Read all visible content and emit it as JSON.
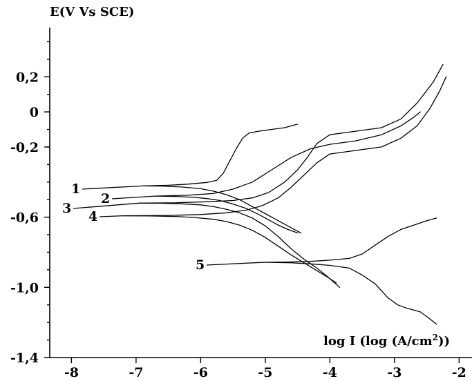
{
  "chart_data": {
    "type": "line",
    "title": "",
    "ylabel": "E(V Vs SCE)",
    "xlabel": "log I (log (A/cm²))",
    "xlabel_parts": {
      "prefix": "log I (log (A/cm",
      "sup": "2",
      "suffix": "))"
    },
    "xlim": [
      -8.4,
      -1.8
    ],
    "ylim": [
      -1.4,
      0.5
    ],
    "x_ticks": [
      -8,
      -7,
      -6,
      -5,
      -4,
      -3,
      -2
    ],
    "x_tick_labels": [
      "-8",
      "-7",
      "-6",
      "-5",
      "-4",
      "-3",
      "-2"
    ],
    "y_ticks": [
      0.2,
      0,
      -0.2,
      -0.6,
      -1.0,
      -1.4
    ],
    "y_tick_labels": [
      "0,2",
      "0",
      "-0,2",
      "-0,6",
      "-1,0",
      "-1,4"
    ],
    "grid": false,
    "legend": "none",
    "series": [
      {
        "label": "1",
        "label_anchor": {
          "x": -6.9,
          "y": -0.422
        },
        "cathodic": [
          [
            -6.9,
            -0.422
          ],
          [
            -6.6,
            -0.423
          ],
          [
            -6.3,
            -0.428
          ],
          [
            -6.0,
            -0.438
          ],
          [
            -5.8,
            -0.452
          ],
          [
            -5.6,
            -0.472
          ],
          [
            -5.4,
            -0.5
          ],
          [
            -5.2,
            -0.54
          ],
          [
            -5.0,
            -0.58
          ],
          [
            -4.85,
            -0.61
          ],
          [
            -4.7,
            -0.64
          ],
          [
            -4.55,
            -0.67
          ],
          [
            -4.45,
            -0.69
          ]
        ],
        "anodic": [
          [
            -6.9,
            -0.422
          ],
          [
            -6.5,
            -0.418
          ],
          [
            -6.2,
            -0.412
          ],
          [
            -5.9,
            -0.402
          ],
          [
            -5.75,
            -0.39
          ],
          [
            -5.65,
            -0.35
          ],
          [
            -5.55,
            -0.28
          ],
          [
            -5.45,
            -0.21
          ],
          [
            -5.35,
            -0.15
          ],
          [
            -5.25,
            -0.12
          ],
          [
            -5.1,
            -0.11
          ],
          [
            -4.9,
            -0.1
          ],
          [
            -4.7,
            -0.09
          ],
          [
            -4.5,
            -0.07
          ]
        ]
      },
      {
        "label": "2",
        "label_anchor": {
          "x": -6.7,
          "y": -0.48
        },
        "cathodic": [
          [
            -6.7,
            -0.48
          ],
          [
            -6.4,
            -0.482
          ],
          [
            -6.1,
            -0.487
          ],
          [
            -5.9,
            -0.494
          ],
          [
            -5.7,
            -0.505
          ],
          [
            -5.5,
            -0.525
          ],
          [
            -5.3,
            -0.55
          ],
          [
            -5.1,
            -0.585
          ],
          [
            -4.95,
            -0.615
          ],
          [
            -4.8,
            -0.645
          ],
          [
            -4.65,
            -0.67
          ],
          [
            -4.5,
            -0.69
          ]
        ],
        "anodic": [
          [
            -6.7,
            -0.48
          ],
          [
            -6.2,
            -0.475
          ],
          [
            -5.8,
            -0.465
          ],
          [
            -5.5,
            -0.44
          ],
          [
            -5.2,
            -0.4
          ],
          [
            -4.9,
            -0.33
          ],
          [
            -4.6,
            -0.26
          ],
          [
            -4.3,
            -0.21
          ],
          [
            -4.0,
            -0.185
          ],
          [
            -3.6,
            -0.165
          ],
          [
            -3.2,
            -0.13
          ],
          [
            -2.9,
            -0.08
          ],
          [
            -2.7,
            -0.03
          ],
          [
            -2.6,
            0.0
          ]
        ]
      },
      {
        "label": "3",
        "label_anchor": {
          "x": -6.95,
          "y": -0.52
        },
        "cathodic": [
          [
            -6.95,
            -0.52
          ],
          [
            -6.6,
            -0.521
          ],
          [
            -6.3,
            -0.524
          ],
          [
            -6.0,
            -0.53
          ],
          [
            -5.8,
            -0.54
          ],
          [
            -5.6,
            -0.555
          ],
          [
            -5.4,
            -0.575
          ],
          [
            -5.2,
            -0.605
          ],
          [
            -5.0,
            -0.65
          ],
          [
            -4.8,
            -0.71
          ],
          [
            -4.6,
            -0.78
          ],
          [
            -4.4,
            -0.84
          ],
          [
            -4.2,
            -0.89
          ],
          [
            -4.0,
            -0.95
          ],
          [
            -3.85,
            -1.0
          ]
        ],
        "anodic": [
          [
            -6.95,
            -0.52
          ],
          [
            -6.4,
            -0.518
          ],
          [
            -5.9,
            -0.512
          ],
          [
            -5.5,
            -0.505
          ],
          [
            -5.2,
            -0.49
          ],
          [
            -4.95,
            -0.46
          ],
          [
            -4.7,
            -0.4
          ],
          [
            -4.5,
            -0.33
          ],
          [
            -4.35,
            -0.26
          ],
          [
            -4.2,
            -0.18
          ],
          [
            -4.0,
            -0.13
          ],
          [
            -3.6,
            -0.11
          ],
          [
            -3.2,
            -0.09
          ],
          [
            -2.9,
            -0.04
          ],
          [
            -2.65,
            0.05
          ],
          [
            -2.4,
            0.17
          ],
          [
            -2.25,
            0.27
          ]
        ]
      },
      {
        "label": "4",
        "label_anchor": {
          "x": -7.2,
          "y": -0.592
        },
        "cathodic": [
          [
            -7.2,
            -0.592
          ],
          [
            -6.8,
            -0.593
          ],
          [
            -6.4,
            -0.596
          ],
          [
            -6.1,
            -0.602
          ],
          [
            -5.8,
            -0.612
          ],
          [
            -5.6,
            -0.625
          ],
          [
            -5.4,
            -0.645
          ],
          [
            -5.2,
            -0.675
          ],
          [
            -5.0,
            -0.715
          ],
          [
            -4.8,
            -0.765
          ],
          [
            -4.6,
            -0.815
          ],
          [
            -4.4,
            -0.86
          ],
          [
            -4.2,
            -0.905
          ],
          [
            -4.0,
            -0.95
          ],
          [
            -3.9,
            -0.975
          ]
        ],
        "anodic": [
          [
            -7.2,
            -0.592
          ],
          [
            -6.5,
            -0.59
          ],
          [
            -6.0,
            -0.585
          ],
          [
            -5.6,
            -0.575
          ],
          [
            -5.3,
            -0.56
          ],
          [
            -5.05,
            -0.535
          ],
          [
            -4.8,
            -0.49
          ],
          [
            -4.6,
            -0.43
          ],
          [
            -4.4,
            -0.36
          ],
          [
            -4.2,
            -0.29
          ],
          [
            -4.0,
            -0.24
          ],
          [
            -3.6,
            -0.22
          ],
          [
            -3.2,
            -0.2
          ],
          [
            -2.9,
            -0.15
          ],
          [
            -2.65,
            -0.08
          ],
          [
            -2.45,
            0.02
          ],
          [
            -2.3,
            0.12
          ],
          [
            -2.2,
            0.2
          ]
        ]
      },
      {
        "label": "5",
        "label_anchor": {
          "x": -5.0,
          "y": -0.857
        },
        "cathodic": [
          [
            -5.0,
            -0.857
          ],
          [
            -4.6,
            -0.86
          ],
          [
            -4.3,
            -0.866
          ],
          [
            -4.0,
            -0.875
          ],
          [
            -3.7,
            -0.89
          ],
          [
            -3.5,
            -0.93
          ],
          [
            -3.3,
            -0.98
          ],
          [
            -3.1,
            -1.06
          ],
          [
            -2.95,
            -1.1
          ],
          [
            -2.8,
            -1.12
          ],
          [
            -2.6,
            -1.14
          ],
          [
            -2.45,
            -1.18
          ],
          [
            -2.35,
            -1.21
          ]
        ],
        "anodic": [
          [
            -5.0,
            -0.857
          ],
          [
            -4.6,
            -0.855
          ],
          [
            -4.3,
            -0.852
          ],
          [
            -4.0,
            -0.845
          ],
          [
            -3.7,
            -0.835
          ],
          [
            -3.5,
            -0.81
          ],
          [
            -3.3,
            -0.76
          ],
          [
            -3.1,
            -0.71
          ],
          [
            -2.9,
            -0.67
          ],
          [
            -2.7,
            -0.645
          ],
          [
            -2.5,
            -0.62
          ],
          [
            -2.35,
            -0.605
          ]
        ]
      }
    ]
  }
}
